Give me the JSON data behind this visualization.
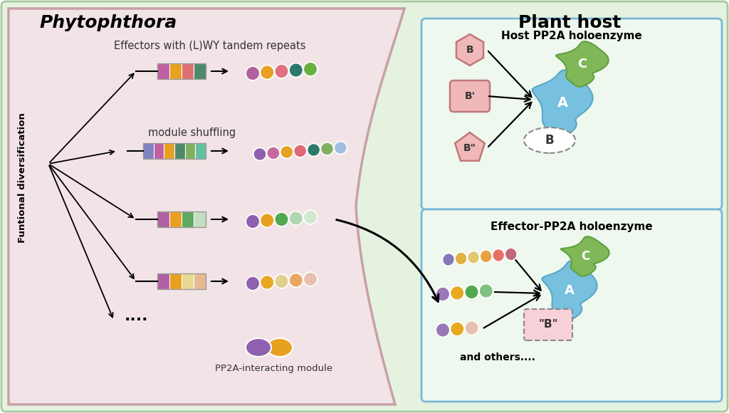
{
  "bg_pink": "#f2e4e6",
  "bg_green": "#e5f2e0",
  "bg_outer": "#ffffff",
  "title_phyto": "Phytophthora",
  "title_plant": "Plant host",
  "label_effectors": "Effectors with (L)WY tandem repeats",
  "label_shuffling": "module shuffling",
  "label_pp2a_module": "PP2A-interacting module",
  "label_funct_div": "Funtional diversification",
  "label_host_pp2a": "Host PP2A holoenzyme",
  "label_effector_pp2a": "Effector-PP2A holoenzyme",
  "label_and_others": "and others....",
  "box_edge_color": "#78b8d8",
  "box_face_color": "#eef8ee",
  "pink_edge": "#c8a0a8",
  "green_edge": "#a8c8a0",
  "bar1_colors": [
    "#c060a0",
    "#e8a020",
    "#e07070",
    "#4a8a6a"
  ],
  "bar2_colors": [
    "#8080c0",
    "#c060a0",
    "#e8a020",
    "#4a8a6a",
    "#80b060",
    "#60c0a0"
  ],
  "bar3_colors": [
    "#b060a0",
    "#e8a020",
    "#60a860",
    "#c0e0c0"
  ],
  "bar4_colors": [
    "#b060a0",
    "#e8a020",
    "#e8d890",
    "#e8b890"
  ],
  "chain1": [
    "#b060a0",
    "#e8a020",
    "#e07080",
    "#2a7a6a",
    "#6ab040"
  ],
  "chain2": [
    "#9060b0",
    "#c868a0",
    "#e8a020",
    "#e06878",
    "#2a7a6a",
    "#80b060",
    "#a0c0e0"
  ],
  "chain3": [
    "#9060b0",
    "#e8a020",
    "#50a850",
    "#b0d8b0",
    "#d0e8d0"
  ],
  "chain4": [
    "#9060b0",
    "#e8a820",
    "#e0d090",
    "#e8a860",
    "#e8c0b0"
  ],
  "eff_chain1": [
    "#8878b8",
    "#e0b040",
    "#e0c870",
    "#e8a040",
    "#e87060",
    "#c06878"
  ],
  "eff_chain2": [
    "#9878b8",
    "#e8a820",
    "#50a850",
    "#80c080"
  ],
  "eff_chain3": [
    "#9878b8",
    "#e8a820",
    "#e8c0b0"
  ],
  "pp2a_module_colors": [
    "#9060b0",
    "#e8a020"
  ],
  "b_shape_color": "#f0b8b8",
  "b_edge_color": "#c07878",
  "a_color": "#78c0e0",
  "c_color": "#80b858",
  "b_dashed_color": "#ffffff",
  "b2_dashed_color": "#f8d0d8"
}
